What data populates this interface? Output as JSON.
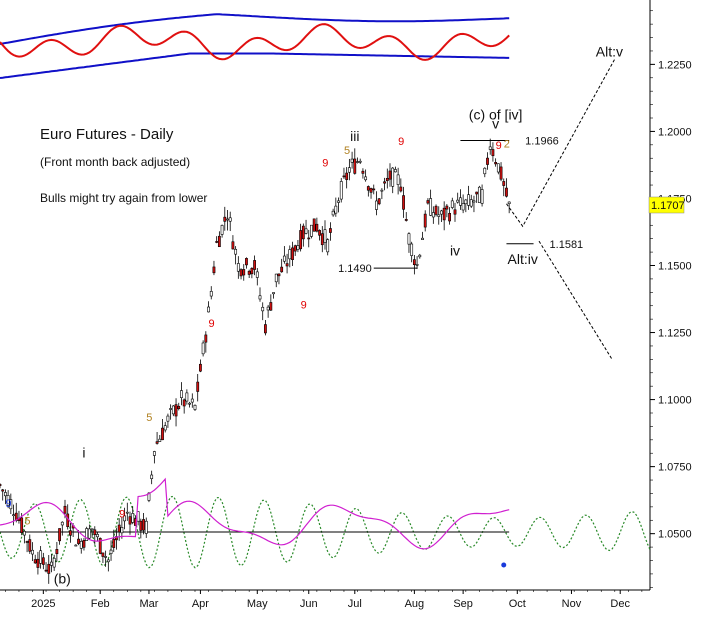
{
  "chart_data": {
    "type": "candlestick",
    "title": "Euro Futures - Daily",
    "subtitle": "(Front month back adjusted)",
    "note": "Bulls might try again from lower",
    "y_ticks": [
      "1.2250",
      "1.2000",
      "1.1750",
      "1.1500",
      "1.1250",
      "1.1000",
      "1.0750",
      "1.0500"
    ],
    "y_tick_values": [
      1.225,
      1.2,
      1.175,
      1.15,
      1.125,
      1.1,
      1.075,
      1.05
    ],
    "x_labels": [
      "2025",
      "Feb",
      "Mar",
      "Apr",
      "May",
      "Jun",
      "Jul",
      "Aug",
      "Sep",
      "Oct",
      "Nov",
      "Dec"
    ],
    "ylim": [
      1.029,
      1.249
    ],
    "last_price": "1.1707",
    "levels": [
      {
        "label": "1.1966",
        "value": 1.1966
      },
      {
        "label": "1.1490",
        "value": 1.149
      },
      {
        "label": "1.1581",
        "value": 1.1581
      }
    ],
    "wave_labels": [
      {
        "text": "(c) of [iv]",
        "x": 183,
        "y": 1.2045
      },
      {
        "text": "v",
        "x": 183,
        "y": 1.201
      },
      {
        "text": "iii",
        "x": 131,
        "y": 1.1965
      },
      {
        "text": "iv",
        "x": 168,
        "y": 1.1537
      },
      {
        "text": "i",
        "x": 31,
        "y": 1.0785
      },
      {
        "text": "(b)",
        "x": 23,
        "y": 1.0315
      },
      {
        "text": "Alt:v",
        "x": 225,
        "y": 1.228
      },
      {
        "text": "Alt:iv",
        "x": 193,
        "y": 1.1505
      }
    ],
    "projection_points": [
      {
        "x": 187,
        "y": 1.173
      },
      {
        "x": 193,
        "y": 1.1646
      },
      {
        "x": 227,
        "y": 1.227
      }
    ],
    "projection_points_alt": [
      {
        "x": 199,
        "y": 1.1591
      },
      {
        "x": 226,
        "y": 1.115
      }
    ],
    "count_marks": [
      {
        "text": "9",
        "x": 111,
        "y": 1.134,
        "color": "#e00000"
      },
      {
        "text": "9",
        "x": 119,
        "y": 1.187,
        "color": "#e00000"
      },
      {
        "text": "5",
        "x": 127,
        "y": 1.1915,
        "color": "#b08020"
      },
      {
        "text": "9",
        "x": 147,
        "y": 1.195,
        "color": "#e00000"
      },
      {
        "text": "2",
        "x": 186,
        "y": 1.194,
        "color": "#b08020"
      },
      {
        "text": "9",
        "x": 183,
        "y": 1.1935,
        "color": "#e00000"
      },
      {
        "text": "9",
        "x": 77,
        "y": 1.127,
        "color": "#e00000"
      },
      {
        "text": "5",
        "x": 54,
        "y": 1.092,
        "color": "#b08020"
      },
      {
        "text": "9",
        "x": 2,
        "y": 1.06,
        "color": "#1a3adb"
      },
      {
        "text": "5",
        "x": 9,
        "y": 1.0535,
        "color": "#b08020"
      },
      {
        "text": "9",
        "x": 44,
        "y": 1.056,
        "color": "#e00000"
      }
    ],
    "colors": {
      "up": "#ffffff",
      "down": "#d01010",
      "bollinger": "#1010c8",
      "oscillator": "#e01010",
      "cycle": "#2a8a2a",
      "indicator": "#d020d0",
      "price_tag": "#ffff00"
    }
  }
}
